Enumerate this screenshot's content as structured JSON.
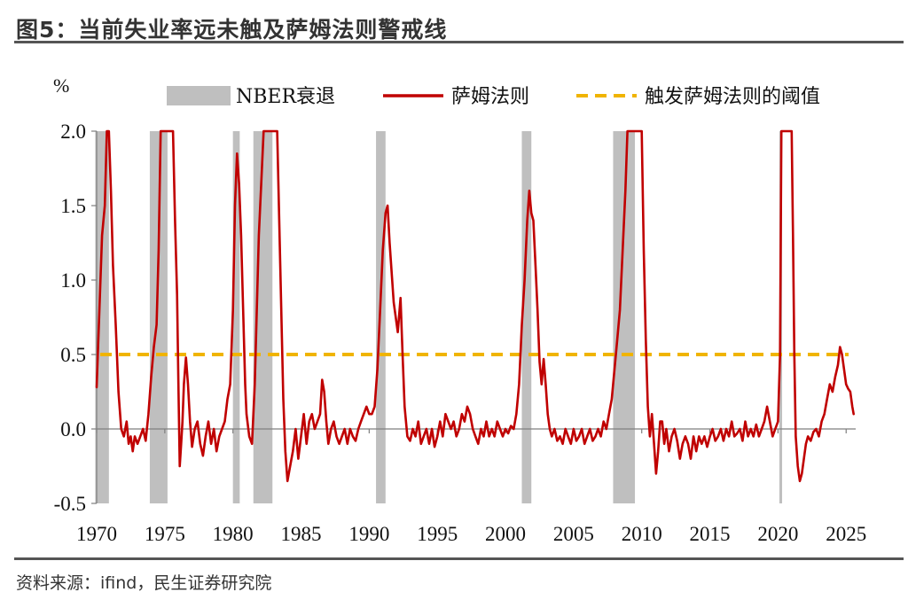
{
  "title": "图5：当前失业率远未触及萨姆法则警戒线",
  "source": "资料来源：ifind，民生证券研究院",
  "colors": {
    "recession": "#bfbfbf",
    "sahm": "#c00000",
    "threshold": "#f0b400",
    "axis": "#7f7f7f"
  },
  "chart_data": {
    "type": "line",
    "unit": "%",
    "xlim": [
      1970.0,
      2025.7
    ],
    "ylim": [
      -0.5,
      2.0
    ],
    "y_ticks": [
      "-0.5",
      "0.0",
      "0.5",
      "1.0",
      "1.5",
      "2.0"
    ],
    "x_ticks": [
      "1970",
      "1975",
      "1980",
      "1985",
      "1990",
      "1995",
      "2000",
      "2005",
      "2010",
      "2015",
      "2020",
      "2025"
    ],
    "legend": [
      {
        "key": "recession",
        "label": "NBER衰退"
      },
      {
        "key": "sahm",
        "label": "萨姆法则"
      },
      {
        "key": "threshold",
        "label": "触发萨姆法则的阈值"
      }
    ],
    "recessions": [
      [
        1969.9,
        1970.9
      ],
      [
        1973.9,
        1975.2
      ],
      [
        1980.0,
        1980.5
      ],
      [
        1981.5,
        1982.9
      ],
      [
        1990.5,
        1991.2
      ],
      [
        2001.2,
        2001.9
      ],
      [
        2007.9,
        2009.5
      ],
      [
        2020.1,
        2020.3
      ]
    ],
    "threshold": 0.5,
    "series": [
      {
        "name": "萨姆法则",
        "points": [
          [
            1970.0,
            0.28
          ],
          [
            1970.2,
            0.8
          ],
          [
            1970.4,
            1.3
          ],
          [
            1970.6,
            1.5
          ],
          [
            1970.75,
            2.0
          ],
          [
            1970.9,
            2.0
          ],
          [
            1971.05,
            1.6
          ],
          [
            1971.2,
            1.1
          ],
          [
            1971.4,
            0.7
          ],
          [
            1971.6,
            0.25
          ],
          [
            1971.8,
            0.0
          ],
          [
            1972.0,
            -0.05
          ],
          [
            1972.2,
            0.05
          ],
          [
            1972.35,
            -0.1
          ],
          [
            1972.5,
            -0.05
          ],
          [
            1972.65,
            -0.15
          ],
          [
            1972.8,
            -0.05
          ],
          [
            1973.0,
            -0.1
          ],
          [
            1973.2,
            -0.05
          ],
          [
            1973.4,
            0.0
          ],
          [
            1973.6,
            -0.08
          ],
          [
            1973.8,
            0.1
          ],
          [
            1974.0,
            0.35
          ],
          [
            1974.2,
            0.55
          ],
          [
            1974.4,
            0.7
          ],
          [
            1974.55,
            1.2
          ],
          [
            1974.7,
            2.0
          ],
          [
            1975.6,
            2.0
          ],
          [
            1975.75,
            1.4
          ],
          [
            1975.9,
            0.9
          ],
          [
            1976.0,
            0.3
          ],
          [
            1976.1,
            -0.25
          ],
          [
            1976.2,
            -0.1
          ],
          [
            1976.3,
            0.05
          ],
          [
            1976.4,
            0.3
          ],
          [
            1976.55,
            0.48
          ],
          [
            1976.7,
            0.3
          ],
          [
            1976.85,
            0.05
          ],
          [
            1977.0,
            -0.12
          ],
          [
            1977.2,
            0.0
          ],
          [
            1977.4,
            0.05
          ],
          [
            1977.6,
            -0.1
          ],
          [
            1977.8,
            -0.18
          ],
          [
            1978.0,
            -0.05
          ],
          [
            1978.2,
            0.05
          ],
          [
            1978.4,
            -0.1
          ],
          [
            1978.6,
            0.0
          ],
          [
            1978.8,
            -0.15
          ],
          [
            1979.0,
            -0.05
          ],
          [
            1979.2,
            0.0
          ],
          [
            1979.4,
            0.05
          ],
          [
            1979.6,
            0.2
          ],
          [
            1979.8,
            0.3
          ],
          [
            1980.0,
            0.8
          ],
          [
            1980.15,
            1.5
          ],
          [
            1980.3,
            1.85
          ],
          [
            1980.45,
            1.65
          ],
          [
            1980.6,
            1.3
          ],
          [
            1980.75,
            0.8
          ],
          [
            1980.9,
            0.3
          ],
          [
            1981.0,
            0.1
          ],
          [
            1981.2,
            -0.05
          ],
          [
            1981.4,
            -0.1
          ],
          [
            1981.6,
            0.3
          ],
          [
            1981.75,
            0.8
          ],
          [
            1981.9,
            1.3
          ],
          [
            1982.1,
            1.7
          ],
          [
            1982.25,
            2.0
          ],
          [
            1983.25,
            2.0
          ],
          [
            1983.4,
            1.4
          ],
          [
            1983.55,
            0.8
          ],
          [
            1983.7,
            0.2
          ],
          [
            1983.85,
            -0.15
          ],
          [
            1984.0,
            -0.35
          ],
          [
            1984.2,
            -0.25
          ],
          [
            1984.4,
            -0.15
          ],
          [
            1984.6,
            0.0
          ],
          [
            1984.8,
            -0.2
          ],
          [
            1985.0,
            -0.05
          ],
          [
            1985.2,
            0.1
          ],
          [
            1985.4,
            -0.1
          ],
          [
            1985.6,
            0.05
          ],
          [
            1985.8,
            0.1
          ],
          [
            1986.0,
            0.0
          ],
          [
            1986.2,
            0.05
          ],
          [
            1986.4,
            0.1
          ],
          [
            1986.55,
            0.33
          ],
          [
            1986.7,
            0.25
          ],
          [
            1986.85,
            0.05
          ],
          [
            1987.0,
            -0.1
          ],
          [
            1987.2,
            0.0
          ],
          [
            1987.4,
            0.05
          ],
          [
            1987.6,
            -0.05
          ],
          [
            1987.8,
            -0.1
          ],
          [
            1988.0,
            -0.05
          ],
          [
            1988.2,
            0.0
          ],
          [
            1988.4,
            -0.1
          ],
          [
            1988.6,
            0.0
          ],
          [
            1988.8,
            -0.05
          ],
          [
            1989.0,
            -0.08
          ],
          [
            1989.2,
            0.0
          ],
          [
            1989.4,
            0.05
          ],
          [
            1989.6,
            0.1
          ],
          [
            1989.8,
            0.15
          ],
          [
            1990.0,
            0.1
          ],
          [
            1990.2,
            0.1
          ],
          [
            1990.4,
            0.15
          ],
          [
            1990.6,
            0.4
          ],
          [
            1990.8,
            0.8
          ],
          [
            1991.0,
            1.2
          ],
          [
            1991.2,
            1.45
          ],
          [
            1991.35,
            1.5
          ],
          [
            1991.5,
            1.25
          ],
          [
            1991.65,
            1.05
          ],
          [
            1991.8,
            0.85
          ],
          [
            1991.95,
            0.75
          ],
          [
            1992.1,
            0.65
          ],
          [
            1992.3,
            0.88
          ],
          [
            1992.45,
            0.5
          ],
          [
            1992.6,
            0.15
          ],
          [
            1992.8,
            -0.05
          ],
          [
            1993.0,
            -0.08
          ],
          [
            1993.2,
            0.0
          ],
          [
            1993.4,
            -0.05
          ],
          [
            1993.6,
            0.05
          ],
          [
            1993.8,
            -0.1
          ],
          [
            1994.0,
            -0.05
          ],
          [
            1994.2,
            0.0
          ],
          [
            1994.4,
            -0.1
          ],
          [
            1994.6,
            0.0
          ],
          [
            1994.8,
            -0.12
          ],
          [
            1995.0,
            -0.05
          ],
          [
            1995.2,
            0.05
          ],
          [
            1995.4,
            -0.05
          ],
          [
            1995.6,
            0.1
          ],
          [
            1995.8,
            0.05
          ],
          [
            1996.0,
            0.0
          ],
          [
            1996.2,
            0.05
          ],
          [
            1996.4,
            -0.05
          ],
          [
            1996.6,
            0.0
          ],
          [
            1996.8,
            0.1
          ],
          [
            1997.0,
            0.05
          ],
          [
            1997.2,
            0.15
          ],
          [
            1997.4,
            0.1
          ],
          [
            1997.6,
            0.0
          ],
          [
            1997.8,
            -0.05
          ],
          [
            1998.0,
            -0.1
          ],
          [
            1998.2,
            0.0
          ],
          [
            1998.4,
            -0.05
          ],
          [
            1998.6,
            0.05
          ],
          [
            1998.8,
            -0.05
          ],
          [
            1999.0,
            0.0
          ],
          [
            1999.2,
            -0.05
          ],
          [
            1999.4,
            0.05
          ],
          [
            1999.6,
            0.0
          ],
          [
            1999.8,
            -0.05
          ],
          [
            2000.0,
            0.0
          ],
          [
            2000.2,
            -0.03
          ],
          [
            2000.4,
            0.02
          ],
          [
            2000.6,
            0.0
          ],
          [
            2000.8,
            0.1
          ],
          [
            2001.0,
            0.3
          ],
          [
            2001.2,
            0.7
          ],
          [
            2001.4,
            1.0
          ],
          [
            2001.6,
            1.4
          ],
          [
            2001.75,
            1.6
          ],
          [
            2001.9,
            1.45
          ],
          [
            2002.05,
            1.4
          ],
          [
            2002.2,
            1.1
          ],
          [
            2002.35,
            0.8
          ],
          [
            2002.5,
            0.45
          ],
          [
            2002.65,
            0.3
          ],
          [
            2002.8,
            0.47
          ],
          [
            2002.95,
            0.3
          ],
          [
            2003.1,
            0.1
          ],
          [
            2003.25,
            0.0
          ],
          [
            2003.4,
            -0.05
          ],
          [
            2003.6,
            0.0
          ],
          [
            2003.8,
            -0.08
          ],
          [
            2004.0,
            -0.05
          ],
          [
            2004.2,
            -0.1
          ],
          [
            2004.4,
            0.0
          ],
          [
            2004.6,
            -0.05
          ],
          [
            2004.8,
            -0.1
          ],
          [
            2005.0,
            0.0
          ],
          [
            2005.2,
            -0.08
          ],
          [
            2005.4,
            -0.05
          ],
          [
            2005.6,
            0.0
          ],
          [
            2005.8,
            -0.1
          ],
          [
            2006.0,
            -0.05
          ],
          [
            2006.2,
            0.0
          ],
          [
            2006.4,
            -0.08
          ],
          [
            2006.6,
            -0.05
          ],
          [
            2006.8,
            0.0
          ],
          [
            2007.0,
            -0.05
          ],
          [
            2007.2,
            0.05
          ],
          [
            2007.4,
            0.0
          ],
          [
            2007.6,
            0.1
          ],
          [
            2007.8,
            0.2
          ],
          [
            2008.0,
            0.4
          ],
          [
            2008.2,
            0.6
          ],
          [
            2008.4,
            0.8
          ],
          [
            2008.6,
            1.2
          ],
          [
            2008.8,
            1.6
          ],
          [
            2008.95,
            2.0
          ],
          [
            2010.0,
            2.0
          ],
          [
            2010.15,
            1.2
          ],
          [
            2010.3,
            0.6
          ],
          [
            2010.45,
            0.15
          ],
          [
            2010.6,
            -0.05
          ],
          [
            2010.75,
            0.1
          ],
          [
            2010.9,
            -0.1
          ],
          [
            2011.05,
            -0.3
          ],
          [
            2011.2,
            -0.15
          ],
          [
            2011.35,
            0.05
          ],
          [
            2011.5,
            0.05
          ],
          [
            2011.65,
            -0.1
          ],
          [
            2011.8,
            0.0
          ],
          [
            2012.0,
            -0.15
          ],
          [
            2012.2,
            -0.05
          ],
          [
            2012.4,
            0.0
          ],
          [
            2012.6,
            -0.08
          ],
          [
            2012.8,
            -0.2
          ],
          [
            2013.0,
            -0.1
          ],
          [
            2013.2,
            -0.05
          ],
          [
            2013.4,
            -0.1
          ],
          [
            2013.6,
            -0.2
          ],
          [
            2013.8,
            -0.05
          ],
          [
            2014.0,
            -0.15
          ],
          [
            2014.2,
            -0.05
          ],
          [
            2014.4,
            -0.1
          ],
          [
            2014.6,
            -0.05
          ],
          [
            2014.8,
            -0.12
          ],
          [
            2015.0,
            -0.05
          ],
          [
            2015.2,
            0.0
          ],
          [
            2015.4,
            -0.08
          ],
          [
            2015.6,
            -0.05
          ],
          [
            2015.8,
            0.0
          ],
          [
            2016.0,
            -0.08
          ],
          [
            2016.2,
            0.0
          ],
          [
            2016.4,
            -0.05
          ],
          [
            2016.6,
            0.05
          ],
          [
            2016.8,
            -0.05
          ],
          [
            2017.0,
            -0.03
          ],
          [
            2017.2,
            0.0
          ],
          [
            2017.4,
            -0.08
          ],
          [
            2017.6,
            0.05
          ],
          [
            2017.8,
            -0.05
          ],
          [
            2018.0,
            0.0
          ],
          [
            2018.2,
            -0.05
          ],
          [
            2018.4,
            0.03
          ],
          [
            2018.6,
            -0.05
          ],
          [
            2018.8,
            0.0
          ],
          [
            2019.0,
            0.05
          ],
          [
            2019.2,
            0.15
          ],
          [
            2019.4,
            0.05
          ],
          [
            2019.6,
            -0.05
          ],
          [
            2019.8,
            0.0
          ],
          [
            2020.0,
            0.05
          ],
          [
            2020.15,
            0.5
          ],
          [
            2020.25,
            2.0
          ],
          [
            2021.0,
            2.0
          ],
          [
            2021.1,
            1.3
          ],
          [
            2021.2,
            0.5
          ],
          [
            2021.3,
            -0.05
          ],
          [
            2021.45,
            -0.25
          ],
          [
            2021.6,
            -0.35
          ],
          [
            2021.75,
            -0.3
          ],
          [
            2021.9,
            -0.2
          ],
          [
            2022.05,
            -0.1
          ],
          [
            2022.2,
            -0.05
          ],
          [
            2022.4,
            -0.08
          ],
          [
            2022.6,
            -0.02
          ],
          [
            2022.8,
            0.0
          ],
          [
            2023.0,
            -0.05
          ],
          [
            2023.2,
            0.05
          ],
          [
            2023.4,
            0.1
          ],
          [
            2023.6,
            0.2
          ],
          [
            2023.8,
            0.3
          ],
          [
            2024.0,
            0.25
          ],
          [
            2024.2,
            0.35
          ],
          [
            2024.4,
            0.43
          ],
          [
            2024.55,
            0.55
          ],
          [
            2024.7,
            0.5
          ],
          [
            2024.85,
            0.4
          ],
          [
            2025.0,
            0.3
          ],
          [
            2025.15,
            0.27
          ],
          [
            2025.3,
            0.25
          ],
          [
            2025.45,
            0.15
          ],
          [
            2025.55,
            0.1
          ]
        ]
      }
    ]
  }
}
